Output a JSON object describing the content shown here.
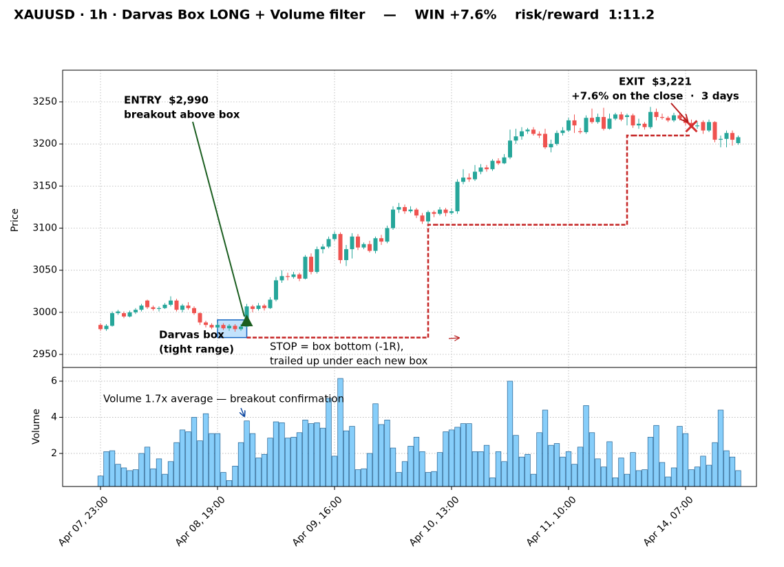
{
  "chart_data": [
    {
      "type": "candlestick",
      "title": "XAUUSD · 1h · Darvas Box LONG + Volume filter    —    WIN +7.6%    risk/reward  1:11.2",
      "ylabel": "Price",
      "ylim": [
        2934.5,
        3287.6
      ],
      "yticks": [
        2950,
        3000,
        3050,
        3100,
        3150,
        3200,
        3250
      ],
      "grid": true,
      "up_color": "#26a69a",
      "down_color": "#ef5350",
      "open": [
        2985,
        2980,
        2984,
        2999,
        2999,
        2995,
        3000,
        3003,
        3014,
        3006,
        3004,
        3005,
        3009,
        3014,
        3003,
        3008,
        3005,
        2999,
        2988,
        2985,
        2982,
        2985,
        2981,
        2984,
        2980,
        2983,
        3007,
        3004,
        3008,
        3005,
        3015,
        3038,
        3043,
        3042,
        3045,
        3040,
        3066,
        3048,
        3075,
        3078,
        3087,
        3093,
        3062,
        3075,
        3090,
        3077,
        3081,
        3073,
        3088,
        3084,
        3100,
        3122,
        3125,
        3120,
        3122,
        3115,
        3108,
        3119,
        3117,
        3122,
        3118,
        3120,
        3155,
        3160,
        3158,
        3167,
        3172,
        3170,
        3180,
        3177,
        3184,
        3204,
        3209,
        3215,
        3217,
        3212,
        3212,
        3196,
        3200,
        3213,
        3216,
        3228,
        3215,
        3214,
        3231,
        3226,
        3232,
        3218,
        3230,
        3235,
        3232,
        3234,
        3222,
        3224,
        3220,
        3238,
        3232,
        3231,
        3228,
        3234,
        3230,
        3225,
        3221,
        3226,
        3216,
        3226,
        3205,
        3206,
        3213,
        3201
      ],
      "close": [
        2980,
        2984,
        2999,
        3001,
        2995,
        3000,
        3003,
        3008,
        3006,
        3004,
        3005,
        3009,
        3014,
        3003,
        3008,
        3005,
        2999,
        2988,
        2985,
        2982,
        2985,
        2981,
        2984,
        2980,
        2983,
        3007,
        3004,
        3008,
        3005,
        3015,
        3038,
        3043,
        3042,
        3045,
        3040,
        3066,
        3048,
        3075,
        3078,
        3087,
        3093,
        3062,
        3075,
        3090,
        3077,
        3081,
        3073,
        3088,
        3084,
        3100,
        3122,
        3125,
        3120,
        3122,
        3115,
        3108,
        3119,
        3117,
        3122,
        3118,
        3120,
        3155,
        3160,
        3158,
        3167,
        3172,
        3170,
        3180,
        3177,
        3184,
        3204,
        3209,
        3215,
        3217,
        3212,
        3210,
        3196,
        3200,
        3213,
        3216,
        3228,
        3222,
        3214,
        3231,
        3226,
        3232,
        3218,
        3230,
        3235,
        3229,
        3234,
        3222,
        3224,
        3220,
        3238,
        3232,
        3231,
        3228,
        3234,
        3230,
        3225,
        3221,
        3222,
        3216,
        3226,
        3205,
        3206,
        3213,
        3205,
        3208
      ],
      "high": [
        2987,
        2986,
        3001,
        3003,
        3001,
        3002,
        3005,
        3010,
        3015,
        3008,
        3007,
        3011,
        3019,
        3016,
        3010,
        3012,
        3007,
        3000,
        2990,
        2987,
        2988,
        2987,
        2986,
        2986,
        2986,
        3010,
        3009,
        3011,
        3010,
        3018,
        3042,
        3050,
        3047,
        3048,
        3047,
        3068,
        3070,
        3078,
        3081,
        3090,
        3096,
        3095,
        3080,
        3094,
        3093,
        3083,
        3085,
        3090,
        3092,
        3103,
        3126,
        3130,
        3128,
        3126,
        3124,
        3118,
        3121,
        3121,
        3125,
        3124,
        3123,
        3158,
        3170,
        3165,
        3175,
        3176,
        3175,
        3182,
        3183,
        3188,
        3217,
        3218,
        3220,
        3219,
        3220,
        3215,
        3218,
        3205,
        3216,
        3220,
        3231,
        3235,
        3219,
        3234,
        3242,
        3236,
        3243,
        3236,
        3237,
        3238,
        3236,
        3236,
        3230,
        3226,
        3244,
        3242,
        3236,
        3233,
        3237,
        3236,
        3232,
        3229,
        3226,
        3228,
        3229,
        3227,
        3210,
        3216,
        3216,
        3210
      ],
      "low": [
        2978,
        2978,
        2983,
        2997,
        2993,
        2994,
        2998,
        3001,
        3004,
        3002,
        3001,
        3004,
        3007,
        3001,
        3000,
        3003,
        2997,
        2985,
        2982,
        2980,
        2980,
        2979,
        2978,
        2977,
        2978,
        2982,
        3000,
        3002,
        3002,
        3004,
        3013,
        3035,
        3038,
        3040,
        3037,
        3039,
        3045,
        3046,
        3070,
        3076,
        3085,
        3058,
        3055,
        3064,
        3074,
        3075,
        3071,
        3070,
        3080,
        3082,
        3098,
        3118,
        3117,
        3118,
        3112,
        3105,
        3105,
        3113,
        3115,
        3114,
        3116,
        3117,
        3152,
        3155,
        3156,
        3164,
        3167,
        3168,
        3175,
        3176,
        3182,
        3200,
        3205,
        3212,
        3210,
        3207,
        3194,
        3190,
        3198,
        3210,
        3214,
        3213,
        3212,
        3212,
        3224,
        3224,
        3216,
        3217,
        3228,
        3227,
        3222,
        3219,
        3218,
        3217,
        3218,
        3228,
        3229,
        3226,
        3226,
        3228,
        3222,
        3219,
        3218,
        3212,
        3214,
        3202,
        3196,
        3196,
        3198,
        3199
      ],
      "stop": {
        "color": "#c62828",
        "label": [
          "STOP = box bottom (-1R),",
          "trailed up under each new box"
        ],
        "values": [
          null,
          null,
          null,
          null,
          null,
          null,
          null,
          null,
          null,
          null,
          null,
          null,
          null,
          null,
          null,
          null,
          null,
          null,
          null,
          null,
          null,
          null,
          null,
          null,
          null,
          2970,
          2970,
          2970,
          2970,
          2970,
          2970,
          2970,
          2970,
          2970,
          2970,
          2970,
          2970,
          2970,
          2970,
          2970,
          2970,
          2970,
          2970,
          2970,
          2970,
          2970,
          2970,
          2970,
          2970,
          2970,
          2970,
          2970,
          2970,
          2970,
          2970,
          2970,
          2970,
          3104,
          3104,
          3104,
          3104,
          3104,
          3104,
          3104,
          3104,
          3104,
          3104,
          3104,
          3104,
          3104,
          3104,
          3104,
          3104,
          3104,
          3104,
          3104,
          3104,
          3104,
          3104,
          3104,
          3104,
          3104,
          3104,
          3104,
          3104,
          3104,
          3104,
          3104,
          3104,
          3104,
          3104,
          3210,
          3210,
          3210,
          3210,
          3210,
          3210,
          3210,
          3210,
          3210,
          3210,
          3210,
          null,
          null,
          null,
          null,
          null,
          null,
          null,
          null
        ]
      },
      "box": {
        "label": [
          "Darvas box",
          "(tight range)"
        ],
        "color": "#0d47a1",
        "start": 20,
        "end": 25,
        "top": 2991,
        "bottom": 2970
      },
      "entry": {
        "label": "ENTRY  $2,990",
        "note": "breakout above box",
        "color": "#1b5e20",
        "index": 25,
        "price": 2990
      },
      "exit": {
        "label": "EXIT  $3,221",
        "note": "+7.6% on the close  ·  3 days",
        "color": "#b71c1c",
        "index": 101,
        "price": 3221
      }
    },
    {
      "type": "bar",
      "ylabel": "Volume",
      "ylim": [
        0.17,
        6.76
      ],
      "yticks": [
        2,
        4,
        6
      ],
      "grid": true,
      "color": "#87cefa",
      "note": "Volume 1.7x average — breakout confirmation",
      "categories": [
        "Apr 07, 23:00",
        null,
        null,
        null,
        null,
        null,
        null,
        null,
        null,
        null,
        null,
        null,
        null,
        null,
        null,
        null,
        null,
        null,
        null,
        null,
        "Apr 08, 19:00",
        null,
        null,
        null,
        null,
        null,
        null,
        null,
        null,
        null,
        null,
        null,
        null,
        null,
        null,
        null,
        null,
        null,
        null,
        null,
        "Apr 09, 16:00",
        null,
        null,
        null,
        null,
        null,
        null,
        null,
        null,
        null,
        null,
        null,
        null,
        null,
        null,
        null,
        null,
        null,
        null,
        null,
        "Apr 10, 13:00",
        null,
        null,
        null,
        null,
        null,
        null,
        null,
        null,
        null,
        null,
        null,
        null,
        null,
        null,
        null,
        null,
        null,
        null,
        null,
        "Apr 11, 10:00",
        null,
        null,
        null,
        null,
        null,
        null,
        null,
        null,
        null,
        null,
        null,
        null,
        null,
        null,
        null,
        null,
        null,
        null,
        null,
        "Apr 14, 07:00",
        null,
        null,
        null,
        null,
        null,
        null,
        null,
        null,
        null
      ],
      "values": [
        0.75,
        2.1,
        2.15,
        1.4,
        1.2,
        1.05,
        1.1,
        2.0,
        2.35,
        1.15,
        1.7,
        0.85,
        1.55,
        2.6,
        3.3,
        3.2,
        4.0,
        2.7,
        4.2,
        3.1,
        3.1,
        0.95,
        0.5,
        1.3,
        2.6,
        3.8,
        3.1,
        1.75,
        1.95,
        2.85,
        3.75,
        3.7,
        2.85,
        2.9,
        3.15,
        3.85,
        3.65,
        3.7,
        3.4,
        5.05,
        1.85,
        6.15,
        3.25,
        3.5,
        1.1,
        1.15,
        2.0,
        4.75,
        3.6,
        3.85,
        2.3,
        0.95,
        1.55,
        2.4,
        2.9,
        2.1,
        0.95,
        1.0,
        2.05,
        3.2,
        3.3,
        3.45,
        3.65,
        3.65,
        2.1,
        2.1,
        2.45,
        0.65,
        2.1,
        1.55,
        6.0,
        3.0,
        1.8,
        1.95,
        0.85,
        3.15,
        4.4,
        2.45,
        2.55,
        1.8,
        2.1,
        1.4,
        2.35,
        4.65,
        3.15,
        1.7,
        1.25,
        2.65,
        0.65,
        1.75,
        0.85,
        2.05,
        1.05,
        1.1,
        2.9,
        3.55,
        1.5,
        0.7,
        1.2,
        3.5,
        3.1,
        1.1,
        1.25,
        1.85,
        1.35,
        2.6,
        4.4,
        2.15,
        1.8,
        1.05
      ]
    }
  ]
}
